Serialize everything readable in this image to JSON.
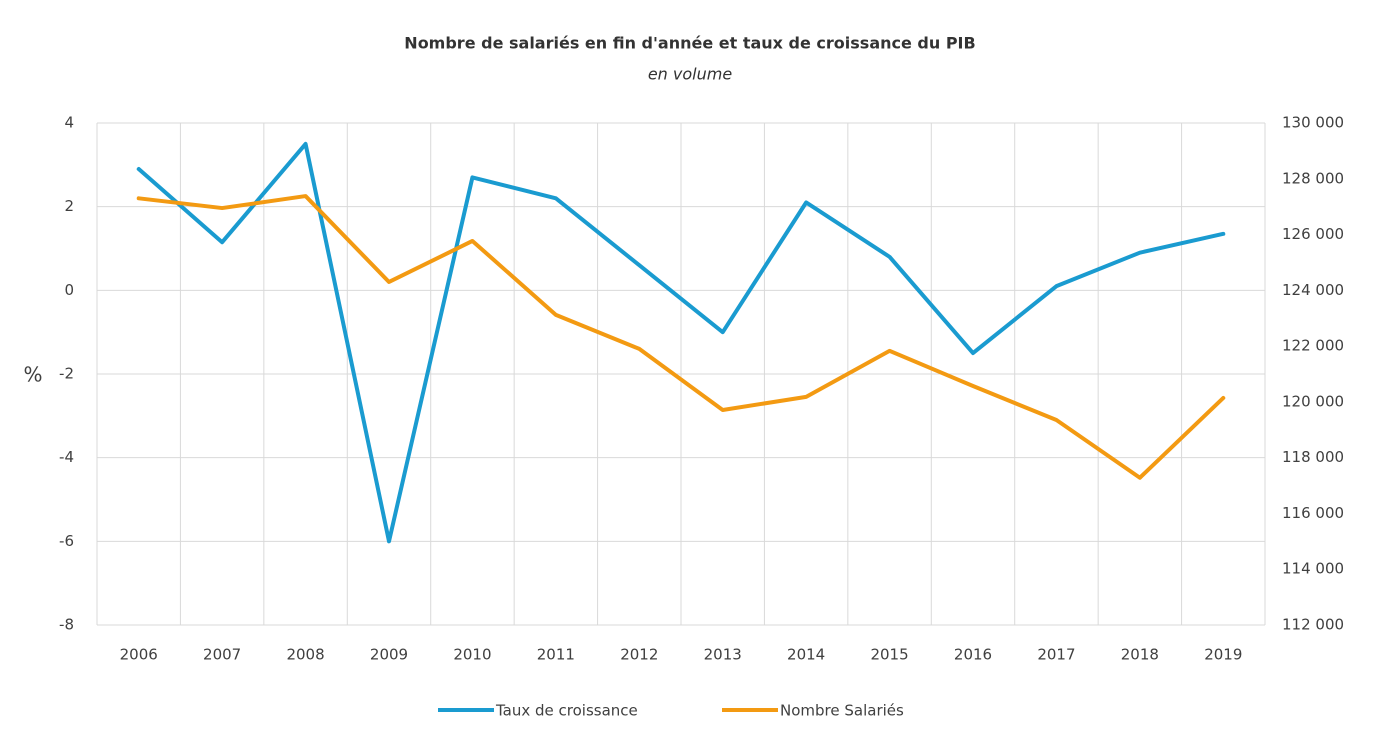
{
  "chart_data": {
    "type": "line",
    "title": "Nombre de salariés  en fin d'année et taux de croissance  du PIB",
    "subtitle": "en volume",
    "y_label": "%",
    "categories": [
      "2006",
      "2007",
      "2008",
      "2009",
      "2010",
      "2011",
      "2012",
      "2013",
      "2014",
      "2015",
      "2016",
      "2017",
      "2018",
      "2019"
    ],
    "series": [
      {
        "name": "Taux de croissance",
        "color": "#1a9bd0",
        "values": [
          2.9,
          1.15,
          3.5,
          -6.0,
          2.7,
          2.2,
          0.6,
          -1.0,
          2.1,
          0.8,
          -1.5,
          0.1,
          0.9,
          1.35
        ]
      },
      {
        "name": "Nombre Salariés",
        "color": "#f39a12",
        "axis": "y2",
        "values": [
          127300,
          126950,
          127380,
          124300,
          125770,
          123120,
          121900,
          119710,
          120180,
          121830,
          120570,
          119350,
          117280,
          120140
        ]
      }
    ],
    "ylim": [
      -8,
      4
    ],
    "yticks": [
      -8,
      -6,
      -4,
      -2,
      0,
      2,
      4
    ],
    "y2lim": [
      112000,
      130000
    ],
    "y2ticks": [
      {
        "value": 112000,
        "label": "112 000"
      },
      {
        "value": 114000,
        "label": "114 000"
      },
      {
        "value": 116000,
        "label": "116 000"
      },
      {
        "value": 118000,
        "label": "118 000"
      },
      {
        "value": 120000,
        "label": "120 000"
      },
      {
        "value": 122000,
        "label": "122 000"
      },
      {
        "value": 124000,
        "label": "124 000"
      },
      {
        "value": 126000,
        "label": "126 000"
      },
      {
        "value": 128000,
        "label": "128 000"
      },
      {
        "value": 130000,
        "label": "130 000"
      }
    ],
    "grid": true,
    "legend": "bottom"
  }
}
